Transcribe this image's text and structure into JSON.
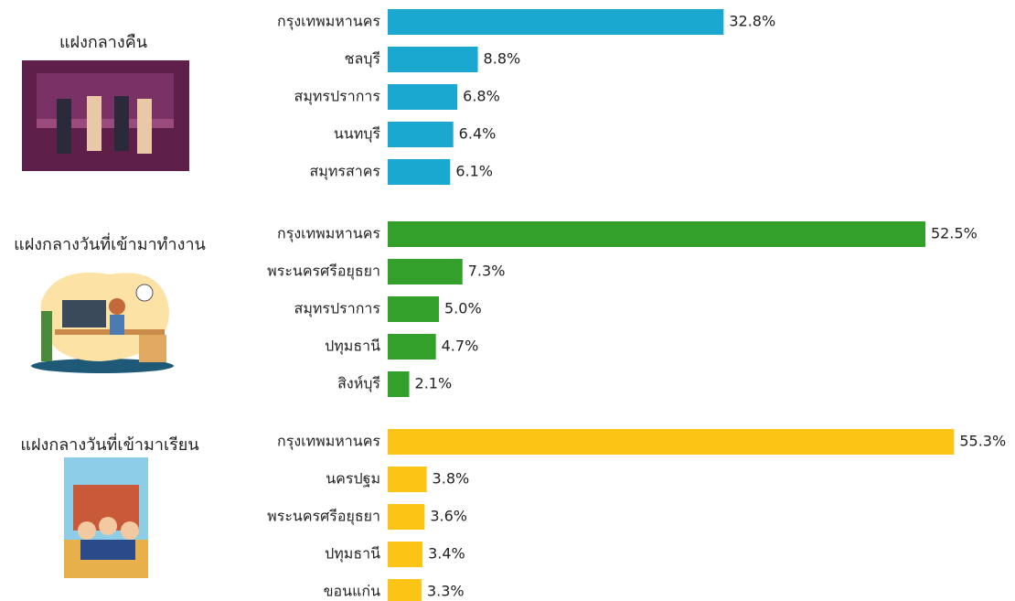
{
  "chart_data": [
    {
      "type": "bar",
      "title": "แฝงกลางคืน",
      "color": "#1ba8d0",
      "categories": [
        "กรุงเทพมหานคร",
        "ชลบุรี",
        "สมุทรปราการ",
        "นนทบุรี",
        "สมุทรสาคร"
      ],
      "values": [
        32.8,
        8.8,
        6.8,
        6.4,
        6.1
      ],
      "value_labels": [
        "32.8%",
        "8.8%",
        "6.8%",
        "6.4%",
        "6.1%"
      ]
    },
    {
      "type": "bar",
      "title": "แฝงกลางวันที่เข้ามาทำงาน",
      "color": "#33a02c",
      "categories": [
        "กรุงเทพมหานคร",
        "พระนครศรีอยุธยา",
        "สมุทรปราการ",
        "ปทุมธานี",
        "สิงห์บุรี"
      ],
      "values": [
        52.5,
        7.3,
        5.0,
        4.7,
        2.1
      ],
      "value_labels": [
        "52.5%",
        "7.3%",
        "5.0%",
        "4.7%",
        "2.1%"
      ]
    },
    {
      "type": "bar",
      "title": "แฝงกลางวันที่เข้ามาเรียน",
      "color": "#fcc516",
      "categories": [
        "กรุงเทพมหานคร",
        "นครปฐม",
        "พระนครศรีอยุธยา",
        "ปทุมธานี",
        "ขอนแก่น"
      ],
      "values": [
        55.3,
        3.8,
        3.6,
        3.4,
        3.3
      ],
      "value_labels": [
        "55.3%",
        "3.8%",
        "3.6%",
        "3.4%",
        "3.3%"
      ]
    }
  ]
}
